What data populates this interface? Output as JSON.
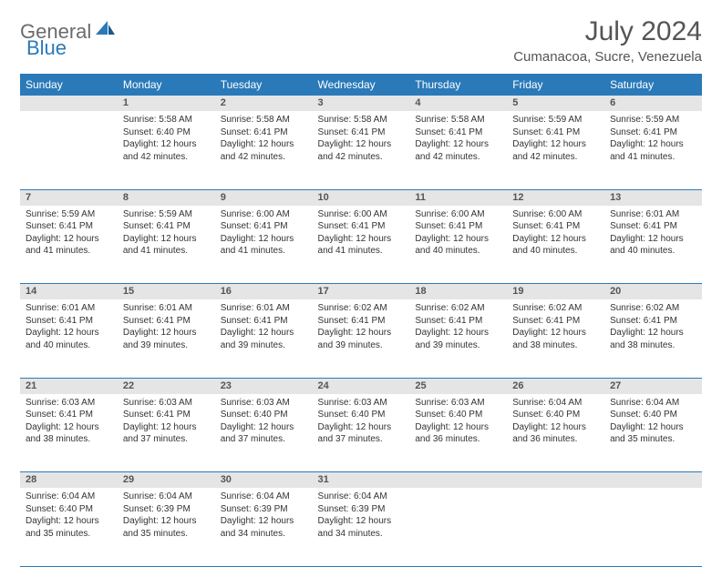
{
  "logo": {
    "general": "General",
    "blue": "Blue"
  },
  "title": "July 2024",
  "location": "Cumanacoa, Sucre, Venezuela",
  "colors": {
    "header_bg": "#2a7ab9",
    "header_text": "#ffffff",
    "daynum_bg": "#e5e5e5",
    "daynum_text": "#555555",
    "body_text": "#333333",
    "rule": "#2a7ab9",
    "logo_gray": "#6b6b6b",
    "logo_blue": "#2a7ab9"
  },
  "weekdays": [
    "Sunday",
    "Monday",
    "Tuesday",
    "Wednesday",
    "Thursday",
    "Friday",
    "Saturday"
  ],
  "start_offset": 1,
  "days": [
    {
      "n": 1,
      "sunrise": "5:58 AM",
      "sunset": "6:40 PM",
      "daylight": "12 hours and 42 minutes."
    },
    {
      "n": 2,
      "sunrise": "5:58 AM",
      "sunset": "6:41 PM",
      "daylight": "12 hours and 42 minutes."
    },
    {
      "n": 3,
      "sunrise": "5:58 AM",
      "sunset": "6:41 PM",
      "daylight": "12 hours and 42 minutes."
    },
    {
      "n": 4,
      "sunrise": "5:58 AM",
      "sunset": "6:41 PM",
      "daylight": "12 hours and 42 minutes."
    },
    {
      "n": 5,
      "sunrise": "5:59 AM",
      "sunset": "6:41 PM",
      "daylight": "12 hours and 42 minutes."
    },
    {
      "n": 6,
      "sunrise": "5:59 AM",
      "sunset": "6:41 PM",
      "daylight": "12 hours and 41 minutes."
    },
    {
      "n": 7,
      "sunrise": "5:59 AM",
      "sunset": "6:41 PM",
      "daylight": "12 hours and 41 minutes."
    },
    {
      "n": 8,
      "sunrise": "5:59 AM",
      "sunset": "6:41 PM",
      "daylight": "12 hours and 41 minutes."
    },
    {
      "n": 9,
      "sunrise": "6:00 AM",
      "sunset": "6:41 PM",
      "daylight": "12 hours and 41 minutes."
    },
    {
      "n": 10,
      "sunrise": "6:00 AM",
      "sunset": "6:41 PM",
      "daylight": "12 hours and 41 minutes."
    },
    {
      "n": 11,
      "sunrise": "6:00 AM",
      "sunset": "6:41 PM",
      "daylight": "12 hours and 40 minutes."
    },
    {
      "n": 12,
      "sunrise": "6:00 AM",
      "sunset": "6:41 PM",
      "daylight": "12 hours and 40 minutes."
    },
    {
      "n": 13,
      "sunrise": "6:01 AM",
      "sunset": "6:41 PM",
      "daylight": "12 hours and 40 minutes."
    },
    {
      "n": 14,
      "sunrise": "6:01 AM",
      "sunset": "6:41 PM",
      "daylight": "12 hours and 40 minutes."
    },
    {
      "n": 15,
      "sunrise": "6:01 AM",
      "sunset": "6:41 PM",
      "daylight": "12 hours and 39 minutes."
    },
    {
      "n": 16,
      "sunrise": "6:01 AM",
      "sunset": "6:41 PM",
      "daylight": "12 hours and 39 minutes."
    },
    {
      "n": 17,
      "sunrise": "6:02 AM",
      "sunset": "6:41 PM",
      "daylight": "12 hours and 39 minutes."
    },
    {
      "n": 18,
      "sunrise": "6:02 AM",
      "sunset": "6:41 PM",
      "daylight": "12 hours and 39 minutes."
    },
    {
      "n": 19,
      "sunrise": "6:02 AM",
      "sunset": "6:41 PM",
      "daylight": "12 hours and 38 minutes."
    },
    {
      "n": 20,
      "sunrise": "6:02 AM",
      "sunset": "6:41 PM",
      "daylight": "12 hours and 38 minutes."
    },
    {
      "n": 21,
      "sunrise": "6:03 AM",
      "sunset": "6:41 PM",
      "daylight": "12 hours and 38 minutes."
    },
    {
      "n": 22,
      "sunrise": "6:03 AM",
      "sunset": "6:41 PM",
      "daylight": "12 hours and 37 minutes."
    },
    {
      "n": 23,
      "sunrise": "6:03 AM",
      "sunset": "6:40 PM",
      "daylight": "12 hours and 37 minutes."
    },
    {
      "n": 24,
      "sunrise": "6:03 AM",
      "sunset": "6:40 PM",
      "daylight": "12 hours and 37 minutes."
    },
    {
      "n": 25,
      "sunrise": "6:03 AM",
      "sunset": "6:40 PM",
      "daylight": "12 hours and 36 minutes."
    },
    {
      "n": 26,
      "sunrise": "6:04 AM",
      "sunset": "6:40 PM",
      "daylight": "12 hours and 36 minutes."
    },
    {
      "n": 27,
      "sunrise": "6:04 AM",
      "sunset": "6:40 PM",
      "daylight": "12 hours and 35 minutes."
    },
    {
      "n": 28,
      "sunrise": "6:04 AM",
      "sunset": "6:40 PM",
      "daylight": "12 hours and 35 minutes."
    },
    {
      "n": 29,
      "sunrise": "6:04 AM",
      "sunset": "6:39 PM",
      "daylight": "12 hours and 35 minutes."
    },
    {
      "n": 30,
      "sunrise": "6:04 AM",
      "sunset": "6:39 PM",
      "daylight": "12 hours and 34 minutes."
    },
    {
      "n": 31,
      "sunrise": "6:04 AM",
      "sunset": "6:39 PM",
      "daylight": "12 hours and 34 minutes."
    }
  ],
  "labels": {
    "sunrise": "Sunrise:",
    "sunset": "Sunset:",
    "daylight": "Daylight:"
  }
}
